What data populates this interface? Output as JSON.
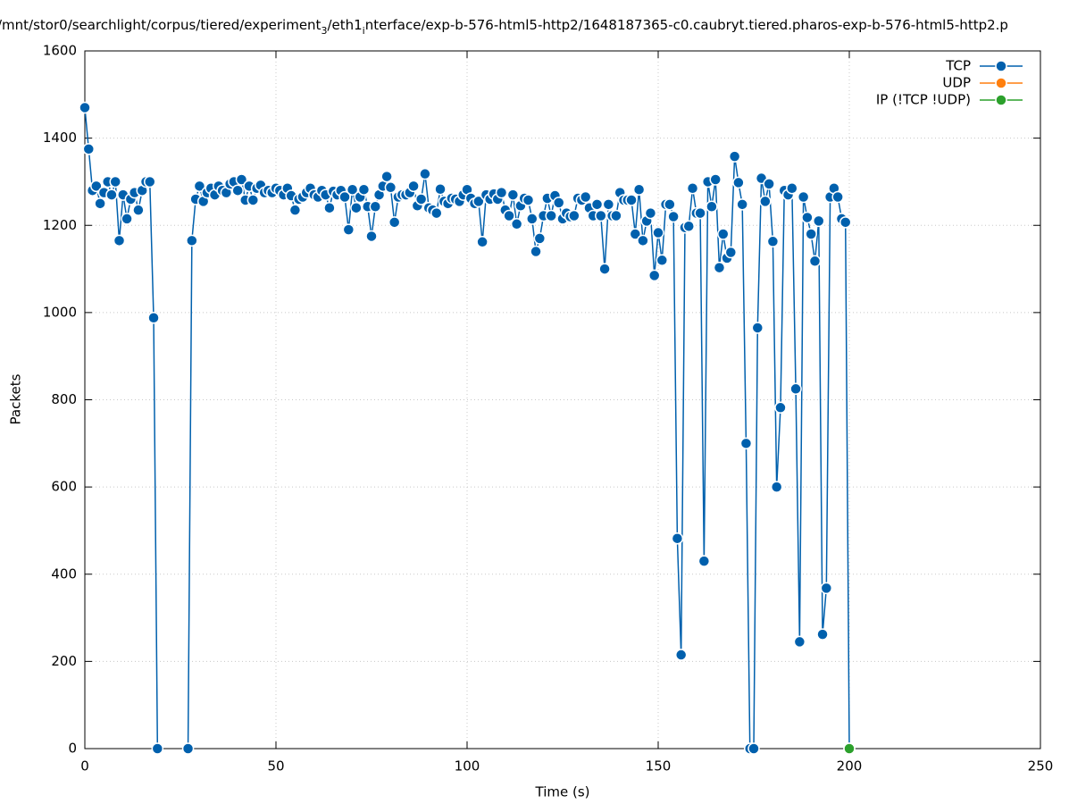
{
  "chart_data": {
    "type": "line",
    "title": "/mnt/stor0/searchlight/corpus/tiered/experiment_3/eth1_interface/exp-b-576-html5-http2/1648187365-c0.caubryt.tiered.pharos-exp-b-576-html5-http2.p",
    "xlabel": "Time (s)",
    "ylabel": "Packets",
    "xlim": [
      0,
      250
    ],
    "xticks": [
      0,
      50,
      100,
      150,
      200,
      250
    ],
    "ylim": [
      0,
      1600
    ],
    "yticks": [
      0,
      200,
      400,
      600,
      800,
      1000,
      1200,
      1400,
      1600
    ],
    "grid": true,
    "legend": "top-right",
    "series": [
      {
        "name": "TCP",
        "color": "#0060ad",
        "x": [
          0,
          1,
          2,
          3,
          4,
          5,
          6,
          7,
          8,
          9,
          10,
          11,
          12,
          13,
          14,
          15,
          16,
          17,
          18,
          19,
          20,
          21,
          22,
          23,
          24,
          25,
          26,
          27,
          28,
          29,
          30,
          31,
          32,
          33,
          34,
          35,
          36,
          37,
          38,
          39,
          40,
          41,
          42,
          43,
          44,
          45,
          46,
          47,
          48,
          49,
          50,
          51,
          52,
          53,
          54,
          55,
          56,
          57,
          58,
          59,
          60,
          61,
          62,
          63,
          64,
          65,
          66,
          67,
          68,
          69,
          70,
          71,
          72,
          73,
          74,
          75,
          76,
          77,
          78,
          79,
          80,
          81,
          82,
          83,
          84,
          85,
          86,
          87,
          88,
          89,
          90,
          91,
          92,
          93,
          94,
          95,
          96,
          97,
          98,
          99,
          100,
          101,
          102,
          103,
          104,
          105,
          106,
          107,
          108,
          109,
          110,
          111,
          112,
          113,
          114,
          115,
          116,
          117,
          118,
          119,
          120,
          121,
          122,
          123,
          124,
          125,
          126,
          127,
          128,
          129,
          130,
          131,
          132,
          133,
          134,
          135,
          136,
          137,
          138,
          139,
          140,
          141,
          142,
          143,
          144,
          145,
          146,
          147,
          148,
          149,
          150,
          151,
          152,
          153,
          154,
          155,
          156,
          157,
          158,
          159,
          160,
          161,
          162,
          163,
          164,
          165,
          166,
          167,
          168,
          169,
          170,
          171,
          172,
          173,
          174,
          175,
          176,
          177,
          178,
          179,
          180,
          181,
          182,
          183,
          184,
          185,
          186,
          187,
          188,
          189,
          190,
          191,
          192,
          193,
          194,
          195,
          196,
          197,
          198,
          199,
          200
        ],
        "values": [
          1470,
          1375,
          1280,
          1290,
          1250,
          1275,
          1300,
          1270,
          1300,
          1165,
          1270,
          1215,
          1260,
          1275,
          1235,
          1280,
          1300,
          1300,
          988,
          0,
          null,
          null,
          null,
          null,
          null,
          null,
          null,
          0,
          1165,
          1260,
          1290,
          1255,
          1275,
          1285,
          1270,
          1290,
          1280,
          1275,
          1295,
          1300,
          1280,
          1305,
          1258,
          1290,
          1258,
          1285,
          1292,
          1275,
          1280,
          1275,
          1285,
          1280,
          1270,
          1285,
          1268,
          1235,
          1260,
          1265,
          1275,
          1285,
          1270,
          1265,
          1280,
          1270,
          1240,
          1278,
          1270,
          1280,
          1265,
          1190,
          1282,
          1240,
          1265,
          1282,
          1243,
          1175,
          1243,
          1270,
          1290,
          1312,
          1287,
          1207,
          1265,
          1270,
          1270,
          1275,
          1290,
          1245,
          1260,
          1318,
          1240,
          1235,
          1228,
          1283,
          1255,
          1250,
          1262,
          1260,
          1255,
          1270,
          1282,
          1262,
          1250,
          1255,
          1162,
          1270,
          1260,
          1272,
          1260,
          1275,
          1235,
          1222,
          1270,
          1203,
          1245,
          1262,
          1258,
          1215,
          1140,
          1170,
          1222,
          1262,
          1222,
          1268,
          1252,
          1215,
          1228,
          1220,
          1222,
          1262,
          1258,
          1265,
          1240,
          1222,
          1248,
          1222,
          1100,
          1248,
          1222,
          1222,
          1275,
          1258,
          1258,
          1258,
          1180,
          1282,
          1165,
          1210,
          1228,
          1085,
          1183,
          1120,
          1248,
          1248,
          1220,
          482,
          215,
          1195,
          1198,
          1285,
          1228,
          1228,
          430,
          1300,
          1243,
          1305,
          1103,
          1180,
          1125,
          1138,
          1358,
          1298,
          1248,
          700,
          0,
          0,
          965,
          1308,
          1255,
          1295,
          1163,
          600,
          782,
          1280,
          1270,
          1285,
          825,
          245,
          1265,
          1218,
          1180,
          1118,
          1210,
          262,
          368,
          1265,
          1285,
          1265,
          1215,
          1207,
          0
        ]
      },
      {
        "name": "UDP",
        "color": "#ff7f0e",
        "x": [],
        "values": []
      },
      {
        "name": "IP (!TCP  !UDP)",
        "color": "#2ca02c",
        "x": [
          200
        ],
        "values": [
          0
        ]
      }
    ]
  }
}
